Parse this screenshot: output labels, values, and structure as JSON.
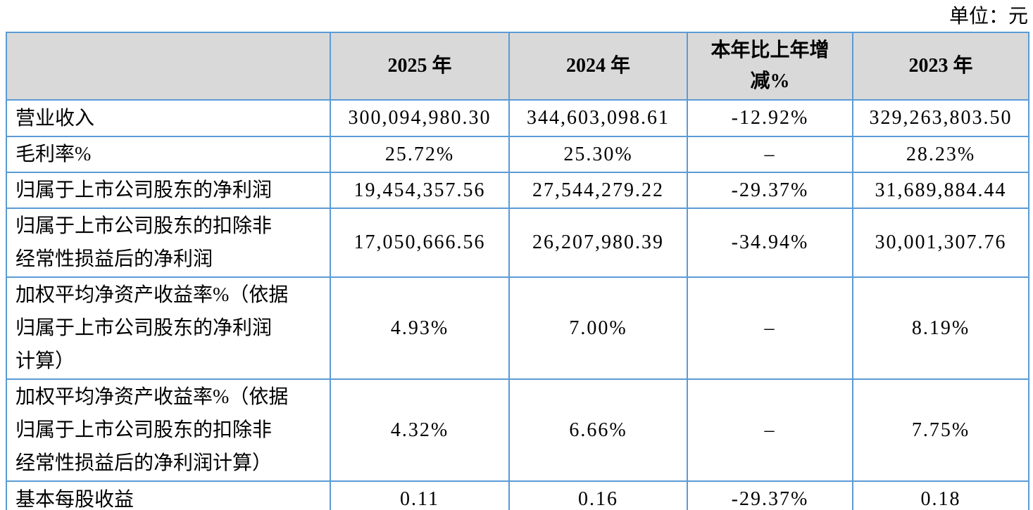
{
  "unit_label": "单位：元",
  "style": {
    "border_color": "#5B9BD5",
    "header_bg": "#D9D9D9",
    "text_color": "#000000"
  },
  "table": {
    "headers": [
      "",
      "2025 年",
      "2024 年",
      "本年比上年增\n减%",
      "2023 年"
    ],
    "rows": [
      {
        "label": "营业收入",
        "y2025": "300,094,980.30",
        "y2024": "344,603,098.61",
        "change": "-12.92%",
        "y2023": "329,263,803.50"
      },
      {
        "label": "毛利率%",
        "y2025": "25.72%",
        "y2024": "25.30%",
        "change": "–",
        "y2023": "28.23%"
      },
      {
        "label": "归属于上市公司股东的净利润",
        "y2025": "19,454,357.56",
        "y2024": "27,544,279.22",
        "change": "-29.37%",
        "y2023": "31,689,884.44"
      },
      {
        "label": "归属于上市公司股东的扣除非\n经常性损益后的净利润",
        "y2025": "17,050,666.56",
        "y2024": "26,207,980.39",
        "change": "-34.94%",
        "y2023": "30,001,307.76"
      },
      {
        "label": "加权平均净资产收益率%（依据\n归属于上市公司股东的净利润\n计算）",
        "y2025": "4.93%",
        "y2024": "7.00%",
        "change": "–",
        "y2023": "8.19%"
      },
      {
        "label": "加权平均净资产收益率%（依据\n归属于上市公司股东的扣除非\n经常性损益后的净利润计算）",
        "y2025": "4.32%",
        "y2024": "6.66%",
        "change": "–",
        "y2023": "7.75%"
      },
      {
        "label": "基本每股收益",
        "y2025": "0.11",
        "y2024": "0.16",
        "change": "-29.37%",
        "y2023": "0.18"
      }
    ]
  }
}
